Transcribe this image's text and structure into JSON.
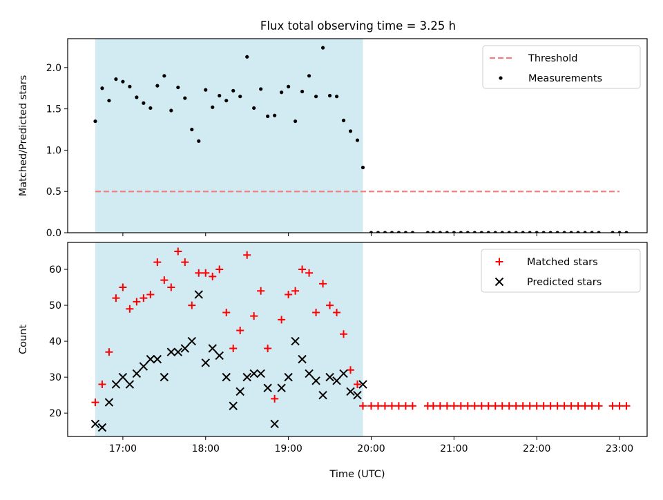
{
  "chart_data": [
    {
      "type": "scatter",
      "title": "Flux total observing time = 3.25 h",
      "xlabel": "",
      "ylabel": "Matched/Predicted stars",
      "xlim": [
        "16:20",
        "23:20"
      ],
      "ylim": [
        0,
        2.35
      ],
      "yticks": [
        0.0,
        0.5,
        1.0,
        1.5,
        2.0
      ],
      "ytick_labels": [
        "0.0",
        "0.5",
        "1.0",
        "1.5",
        "2.0"
      ],
      "xticks": [
        "17:00",
        "18:00",
        "19:00",
        "20:00",
        "21:00",
        "22:00",
        "23:00"
      ],
      "shaded_interval": [
        "16:40",
        "19:54"
      ],
      "shaded_color": "#add8e6",
      "legend": {
        "placement": "top-right",
        "entries": [
          "Threshold",
          "Measurements"
        ]
      },
      "series": [
        {
          "name": "Threshold",
          "style": "dashed-line",
          "color": "#f08080",
          "x": [
            "16:40",
            "23:00"
          ],
          "values": [
            0.5,
            0.5
          ]
        },
        {
          "name": "Measurements",
          "style": "point",
          "color": "#000000",
          "x": [
            "16:40",
            "16:45",
            "16:50",
            "16:55",
            "17:00",
            "17:05",
            "17:10",
            "17:15",
            "17:20",
            "17:25",
            "17:30",
            "17:35",
            "17:40",
            "17:45",
            "17:50",
            "17:55",
            "18:00",
            "18:05",
            "18:10",
            "18:15",
            "18:20",
            "18:25",
            "18:30",
            "18:35",
            "18:40",
            "18:45",
            "18:50",
            "18:55",
            "19:00",
            "19:05",
            "19:10",
            "19:15",
            "19:20",
            "19:25",
            "19:30",
            "19:35",
            "19:40",
            "19:45",
            "19:50",
            "19:54",
            "20:00",
            "20:05",
            "20:10",
            "20:15",
            "20:20",
            "20:25",
            "20:30",
            "20:41",
            "20:45",
            "20:50",
            "20:55",
            "21:00",
            "21:05",
            "21:10",
            "21:15",
            "21:20",
            "21:25",
            "21:30",
            "21:35",
            "21:40",
            "21:45",
            "21:50",
            "21:55",
            "22:00",
            "22:05",
            "22:10",
            "22:15",
            "22:20",
            "22:25",
            "22:30",
            "22:35",
            "22:40",
            "22:45",
            "22:55",
            "23:00",
            "23:05"
          ],
          "values": [
            1.35,
            1.75,
            1.6,
            1.86,
            1.83,
            1.77,
            1.64,
            1.57,
            1.51,
            1.78,
            1.9,
            1.48,
            1.76,
            1.63,
            1.25,
            1.11,
            1.73,
            1.52,
            1.66,
            1.6,
            1.72,
            1.65,
            2.13,
            1.51,
            1.74,
            1.41,
            1.42,
            1.7,
            1.77,
            1.35,
            1.71,
            1.9,
            1.65,
            2.24,
            1.66,
            1.65,
            1.36,
            1.23,
            1.12,
            0.79,
            0,
            0,
            0,
            0,
            0,
            0,
            0,
            0,
            0,
            0,
            0,
            0,
            0,
            0,
            0,
            0,
            0,
            0,
            0,
            0,
            0,
            0,
            0,
            0,
            0,
            0,
            0,
            0,
            0,
            0,
            0,
            0,
            0,
            0,
            0,
            0
          ]
        }
      ]
    },
    {
      "type": "scatter",
      "title": "",
      "xlabel": "Time (UTC)",
      "ylabel": "Count",
      "xlim": [
        "16:20",
        "23:20"
      ],
      "ylim": [
        13.5,
        67.5
      ],
      "yticks": [
        20,
        30,
        40,
        50,
        60
      ],
      "ytick_labels": [
        "20",
        "30",
        "40",
        "50",
        "60"
      ],
      "xticks": [
        "17:00",
        "18:00",
        "19:00",
        "20:00",
        "21:00",
        "22:00",
        "23:00"
      ],
      "shaded_interval": [
        "16:40",
        "19:54"
      ],
      "shaded_color": "#add8e6",
      "legend": {
        "placement": "top-right",
        "entries": [
          "Matched stars",
          "Predicted stars"
        ]
      },
      "series": [
        {
          "name": "Matched stars",
          "style": "plus",
          "color": "#ff0000",
          "x": [
            "16:40",
            "16:45",
            "16:50",
            "16:55",
            "17:00",
            "17:05",
            "17:10",
            "17:15",
            "17:20",
            "17:25",
            "17:30",
            "17:35",
            "17:40",
            "17:45",
            "17:50",
            "17:55",
            "18:00",
            "18:05",
            "18:10",
            "18:15",
            "18:20",
            "18:25",
            "18:30",
            "18:35",
            "18:40",
            "18:45",
            "18:50",
            "18:55",
            "19:00",
            "19:05",
            "19:10",
            "19:15",
            "19:20",
            "19:25",
            "19:30",
            "19:35",
            "19:40",
            "19:45",
            "19:50",
            "19:54",
            "20:00",
            "20:05",
            "20:10",
            "20:15",
            "20:20",
            "20:25",
            "20:30",
            "20:41",
            "20:45",
            "20:50",
            "20:55",
            "21:00",
            "21:05",
            "21:10",
            "21:15",
            "21:20",
            "21:25",
            "21:30",
            "21:35",
            "21:40",
            "21:45",
            "21:50",
            "21:55",
            "22:00",
            "22:05",
            "22:10",
            "22:15",
            "22:20",
            "22:25",
            "22:30",
            "22:35",
            "22:40",
            "22:45",
            "22:55",
            "23:00",
            "23:05"
          ],
          "values": [
            23,
            28,
            37,
            52,
            55,
            49,
            51,
            52,
            53,
            62,
            57,
            55,
            65,
            62,
            50,
            59,
            59,
            58,
            60,
            48,
            38,
            43,
            64,
            47,
            54,
            38,
            24,
            46,
            53,
            54,
            60,
            59,
            48,
            56,
            50,
            48,
            42,
            32,
            28,
            22,
            22,
            22,
            22,
            22,
            22,
            22,
            22,
            22,
            22,
            22,
            22,
            22,
            22,
            22,
            22,
            22,
            22,
            22,
            22,
            22,
            22,
            22,
            22,
            22,
            22,
            22,
            22,
            22,
            22,
            22,
            22,
            22,
            22,
            22,
            22,
            22
          ]
        },
        {
          "name": "Predicted stars",
          "style": "x",
          "color": "#000000",
          "x": [
            "16:40",
            "16:45",
            "16:50",
            "16:55",
            "17:00",
            "17:05",
            "17:10",
            "17:15",
            "17:20",
            "17:25",
            "17:30",
            "17:35",
            "17:40",
            "17:45",
            "17:50",
            "17:55",
            "18:00",
            "18:05",
            "18:10",
            "18:15",
            "18:20",
            "18:25",
            "18:30",
            "18:35",
            "18:40",
            "18:45",
            "18:50",
            "18:55",
            "19:00",
            "19:05",
            "19:10",
            "19:15",
            "19:20",
            "19:25",
            "19:30",
            "19:35",
            "19:40",
            "19:45",
            "19:50",
            "19:54"
          ],
          "values": [
            17,
            16,
            23,
            28,
            30,
            28,
            31,
            33,
            35,
            35,
            30,
            37,
            37,
            38,
            40,
            53,
            34,
            38,
            36,
            30,
            22,
            26,
            30,
            31,
            31,
            27,
            17,
            27,
            30,
            40,
            35,
            31,
            29,
            25,
            30,
            29,
            31,
            26,
            25,
            28
          ]
        }
      ]
    }
  ]
}
